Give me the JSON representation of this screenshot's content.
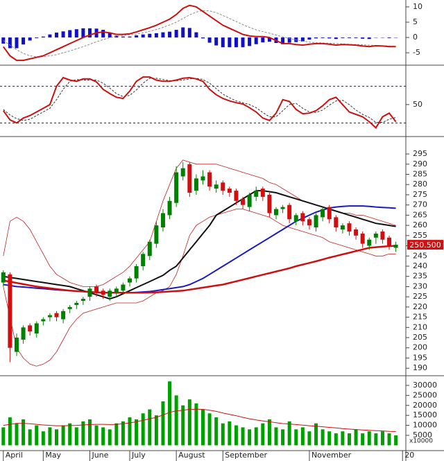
{
  "chart_data": [
    {
      "type": "line",
      "xlim": [
        -0.5,
        60.5
      ],
      "ylim": [
        -8.6,
        11.8
      ],
      "yticks": [
        10,
        5,
        0,
        -5
      ],
      "histogram": {
        "color": "#1010c8",
        "values": [
          -2,
          -3.5,
          -3.5,
          -2.3,
          -1,
          -0.2,
          0.3,
          1,
          1.6,
          2,
          2.4,
          2.7,
          3,
          3,
          2.9,
          2.5,
          1.6,
          0.6,
          0.3,
          0.3,
          0.7,
          1,
          1.2,
          1.4,
          1.7,
          1.9,
          2.5,
          3.3,
          3.1,
          1.7,
          -0.3,
          -1.7,
          -2.6,
          -3.2,
          -3.2,
          -3.2,
          -3.2,
          -2.8,
          -2.2,
          -1.6,
          -1.4,
          -1.8,
          -2.2,
          -1.7,
          -1.5,
          -1.3,
          -0.7,
          -0.3,
          -0.2,
          -0.3,
          -0.5,
          -0.2,
          -0.2,
          -0.2,
          -0.4,
          -0.5,
          -0.1,
          -0.1,
          -0.2,
          -0.1
        ]
      },
      "series": [
        {
          "color": "#888888",
          "dash": true,
          "width": 1,
          "values": [
            -1,
            -2.5,
            -4,
            -5.2,
            -6,
            -6.3,
            -6.3,
            -6,
            -5.6,
            -5,
            -4.4,
            -3.7,
            -3,
            -2.2,
            -1.4,
            -0.7,
            -0.1,
            0.4,
            0.7,
            0.9,
            1.1,
            1.5,
            2,
            2.6,
            3.3,
            4.1,
            5,
            6.2,
            7.4,
            8.3,
            8.8,
            8.7,
            8.1,
            7.2,
            6.2,
            5.2,
            4.2,
            3.3,
            2.5,
            1.9,
            1.4,
            0.8,
            0.2,
            -0.3,
            -0.8,
            -1.2,
            -1.5,
            -1.7,
            -1.8,
            -1.9,
            -2,
            -2.1,
            -2.2,
            -2.3,
            -2.4,
            -2.5,
            -2.6,
            -2.7,
            -2.8,
            -2.9
          ]
        },
        {
          "color": "#cc1010",
          "dash": false,
          "width": 2,
          "values": [
            -3,
            -6,
            -7.5,
            -7.5,
            -7,
            -6.5,
            -6,
            -5,
            -4,
            -3,
            -2,
            -1,
            0,
            0.8,
            1.5,
            1.8,
            1.5,
            1,
            1,
            1.2,
            1.8,
            2.5,
            3.2,
            4,
            5,
            6,
            7.5,
            9.5,
            10.5,
            10,
            8.5,
            7,
            5.5,
            4,
            3,
            2,
            1,
            0.5,
            0.3,
            0.3,
            0,
            -1,
            -2,
            -2,
            -2.3,
            -2.5,
            -2.2,
            -2,
            -2,
            -2.2,
            -2.5,
            -2.3,
            -2.4,
            -2.5,
            -2.8,
            -3,
            -2.7,
            -2.8,
            -3,
            -3
          ]
        }
      ]
    },
    {
      "type": "line",
      "xlim": [
        -0.5,
        60.5
      ],
      "ylim": [
        0,
        111
      ],
      "yticks": [
        50
      ],
      "levels": [
        80,
        20
      ],
      "series": [
        {
          "color": "#333333",
          "dash": true,
          "width": 1,
          "values": [
            42,
            33,
            27,
            24,
            26,
            32,
            38,
            44,
            58,
            75,
            88,
            91,
            90,
            90,
            90,
            85,
            77,
            68,
            63,
            65,
            74,
            85,
            93,
            93,
            91,
            89,
            89,
            90,
            92,
            93,
            91,
            85,
            76,
            67,
            61,
            56,
            53,
            50,
            45,
            37,
            30,
            30,
            40,
            50,
            52,
            44,
            38,
            37,
            41,
            49,
            56,
            57,
            50,
            41,
            34,
            29,
            21,
            21,
            26,
            29
          ]
        },
        {
          "color": "#cc1010",
          "dash": false,
          "width": 2,
          "values": [
            40,
            25,
            20,
            28,
            32,
            38,
            44,
            50,
            80,
            94,
            90,
            88,
            92,
            92,
            87,
            75,
            68,
            62,
            60,
            72,
            88,
            95,
            95,
            90,
            88,
            88,
            90,
            93,
            94,
            92,
            88,
            75,
            66,
            60,
            56,
            53,
            51,
            45,
            38,
            28,
            24,
            36,
            58,
            55,
            42,
            35,
            36,
            40,
            48,
            58,
            62,
            50,
            38,
            34,
            30,
            22,
            12,
            30,
            36,
            22
          ]
        }
      ]
    },
    {
      "type": "candlestick",
      "xlim": [
        -0.5,
        60.5
      ],
      "ylim": [
        187,
        302.5
      ],
      "yticks": [
        190,
        195,
        200,
        205,
        210,
        215,
        220,
        225,
        230,
        235,
        240,
        245,
        250,
        255,
        260,
        265,
        270,
        275,
        280,
        285,
        290,
        295
      ],
      "up_color": "#008000",
      "down_color": "#d01010",
      "open": [
        232,
        236,
        198,
        204,
        211,
        207,
        213,
        215,
        217,
        214,
        219,
        221,
        223,
        225,
        230,
        228,
        225,
        227,
        228,
        232,
        234,
        240,
        245,
        251,
        259,
        265,
        271,
        284,
        290,
        277,
        282,
        286,
        278,
        281,
        278,
        277,
        273,
        269,
        274,
        278,
        275,
        265,
        268,
        270,
        262,
        266,
        263,
        259,
        264,
        269,
        264,
        258,
        261,
        258,
        256,
        250,
        254,
        257,
        254,
        249
      ],
      "high": [
        238,
        237,
        207,
        211,
        212,
        213,
        215,
        217,
        218,
        219,
        221,
        223,
        225,
        230,
        231,
        229,
        229,
        230,
        232,
        235,
        241,
        247,
        253,
        262,
        268,
        274,
        289,
        291,
        291,
        285,
        287,
        287,
        282,
        282,
        279,
        278,
        274,
        276,
        279,
        279,
        276,
        269,
        270,
        271,
        266,
        267,
        264,
        266,
        269,
        270,
        265,
        261,
        262,
        259,
        257,
        254,
        257,
        258,
        255,
        252
      ],
      "low": [
        230,
        193,
        196,
        202,
        206,
        205,
        211,
        213,
        213,
        212,
        217,
        219,
        221,
        223,
        225,
        224,
        223,
        225,
        226,
        230,
        232,
        238,
        243,
        249,
        257,
        263,
        269,
        282,
        274,
        275,
        280,
        277,
        276,
        275,
        274,
        270,
        268,
        267,
        272,
        272,
        264,
        263,
        266,
        261,
        260,
        260,
        258,
        257,
        262,
        261,
        257,
        256,
        255,
        253,
        249,
        248,
        251,
        251,
        248,
        247
      ],
      "close": [
        237,
        200,
        205,
        210,
        208,
        212,
        214,
        216,
        215,
        218,
        220,
        222,
        224,
        229,
        227,
        226,
        228,
        229,
        231,
        234,
        240,
        246,
        252,
        260,
        266,
        272,
        286,
        288,
        276,
        283,
        284,
        279,
        280,
        277,
        276,
        272,
        270,
        275,
        277,
        274,
        266,
        268,
        269,
        263,
        265,
        262,
        260,
        265,
        268,
        263,
        259,
        260,
        257,
        255,
        251,
        253,
        256,
        253,
        250,
        250.5
      ],
      "overlays": [
        {
          "color": "#c02020",
          "width": 0.8,
          "values": [
            245,
            262,
            264,
            262,
            258,
            252,
            246,
            240,
            236,
            234,
            232,
            231,
            230,
            230,
            230,
            231,
            233,
            235,
            237,
            240,
            244,
            248,
            252,
            262,
            272,
            280,
            288,
            292,
            291,
            290,
            290,
            290,
            290,
            289,
            288,
            287,
            286,
            285,
            284,
            283,
            281,
            280,
            278,
            276,
            274,
            272,
            271,
            270,
            269,
            268,
            267,
            266,
            266,
            265,
            265,
            264,
            263,
            262,
            261,
            260
          ]
        },
        {
          "color": "#c02020",
          "width": 0.8,
          "values": [
            230,
            215,
            200,
            195,
            192,
            191,
            192,
            194,
            198,
            204,
            210,
            214,
            217,
            218,
            219,
            220,
            221,
            222,
            222,
            222,
            222,
            223,
            225,
            227,
            228,
            230,
            236,
            245,
            255,
            260,
            262,
            264,
            265,
            266,
            267,
            268,
            268,
            267,
            266,
            265,
            264,
            262,
            260,
            259,
            258,
            257,
            256,
            255,
            254,
            252,
            251,
            250,
            249,
            248,
            247,
            246,
            245,
            245,
            246,
            246
          ]
        },
        {
          "color": "#111111",
          "width": 2,
          "values": [
            235,
            234.5,
            234,
            233.5,
            233,
            232.5,
            232,
            231.5,
            231,
            230.5,
            230,
            229,
            228,
            227,
            226,
            225,
            224,
            225,
            226.5,
            228,
            229.5,
            231,
            232.5,
            234,
            235.5,
            238,
            240,
            244,
            248,
            252,
            256,
            260,
            265,
            267,
            269,
            271,
            273,
            275,
            277,
            277,
            276.5,
            276,
            275,
            274,
            273,
            272,
            271,
            270,
            269,
            268,
            267,
            266,
            265,
            264,
            263,
            262,
            261,
            260.5,
            260,
            259.5
          ]
        },
        {
          "color": "#1a1ac0",
          "width": 2,
          "values": [
            231,
            230.5,
            230,
            229.8,
            229.5,
            229.2,
            229,
            228.7,
            228.4,
            228.2,
            228,
            227.8,
            227.6,
            227.4,
            227.2,
            227,
            227,
            227,
            227,
            227,
            227.2,
            227.4,
            227.6,
            228,
            228.5,
            229,
            229.5,
            230,
            231,
            232.5,
            234,
            236,
            238,
            240,
            242,
            244,
            246,
            248,
            250,
            252,
            254,
            256,
            258,
            260,
            262,
            263.5,
            265,
            266.5,
            267.5,
            268.5,
            269,
            269.3,
            269.5,
            269.5,
            269.5,
            269.3,
            269,
            268.8,
            268.6,
            268.4
          ]
        },
        {
          "color": "#cc1010",
          "width": 2.5,
          "values": [
            233,
            232.4,
            231.8,
            231.2,
            230.6,
            230,
            229.6,
            229.2,
            228.8,
            228.4,
            228,
            227.8,
            227.6,
            227.4,
            227.2,
            227,
            227,
            227,
            227,
            227,
            227,
            227,
            227.1,
            227.2,
            227.4,
            227.6,
            227.8,
            228,
            228.5,
            229,
            229.5,
            230,
            230.5,
            231,
            231.8,
            232.6,
            233.4,
            234.2,
            235,
            235.8,
            236.6,
            237.4,
            238.2,
            239,
            240,
            240.8,
            241.6,
            242.4,
            243.3,
            244.2,
            245,
            245.8,
            246.6,
            247.4,
            248.2,
            249,
            249.3,
            249.6,
            249.8,
            250
          ]
        }
      ],
      "last_price": 250.5,
      "last_price_label": "250.500",
      "last_price_color": "#d01010"
    },
    {
      "type": "bar",
      "xlim": [
        -0.5,
        60.5
      ],
      "ylim": [
        -1950,
        33800
      ],
      "yticks": [
        5000,
        10000,
        15000,
        20000,
        25000,
        30000
      ],
      "unit_label": "x10000",
      "color": "#00a000",
      "values": [
        9000,
        14000,
        11000,
        13000,
        8000,
        10000,
        7000,
        9000,
        8000,
        10000,
        11000,
        9000,
        12000,
        13000,
        10000,
        9000,
        8000,
        11000,
        12000,
        14000,
        13000,
        16000,
        18000,
        15000,
        22000,
        32000,
        25000,
        20000,
        23000,
        21000,
        18000,
        16000,
        14000,
        11000,
        12000,
        10000,
        9000,
        8000,
        9000,
        11000,
        13000,
        9000,
        8000,
        12000,
        8000,
        9000,
        7000,
        11000,
        8000,
        7000,
        6000,
        7000,
        6000,
        8000,
        6000,
        7000,
        6000,
        7000,
        6000,
        5000
      ],
      "average": {
        "color": "#cc1010",
        "values": [
          10000,
          10500,
          11000,
          11000,
          10800,
          10500,
          10200,
          10000,
          9800,
          9800,
          9900,
          10000,
          10200,
          10400,
          10500,
          10500,
          10400,
          10500,
          10800,
          11200,
          11800,
          12500,
          13300,
          14000,
          15200,
          16500,
          17200,
          17600,
          18000,
          18100,
          18000,
          17600,
          17000,
          16200,
          15500,
          14800,
          14000,
          13300,
          12700,
          12200,
          11800,
          11300,
          10900,
          10700,
          10400,
          10100,
          9800,
          9600,
          9300,
          9000,
          8700,
          8400,
          8100,
          7900,
          7700,
          7500,
          7300,
          7200,
          7000,
          6900
        ]
      },
      "xticks": [
        {
          "value": 0,
          "label": "April"
        },
        {
          "value": 6,
          "label": "May"
        },
        {
          "value": 13,
          "label": "June"
        },
        {
          "value": 19,
          "label": "July"
        },
        {
          "value": 26,
          "label": "August"
        },
        {
          "value": 33,
          "label": "September"
        },
        {
          "value": 46,
          "label": "November"
        },
        {
          "value": 60,
          "label": "20"
        }
      ]
    }
  ]
}
